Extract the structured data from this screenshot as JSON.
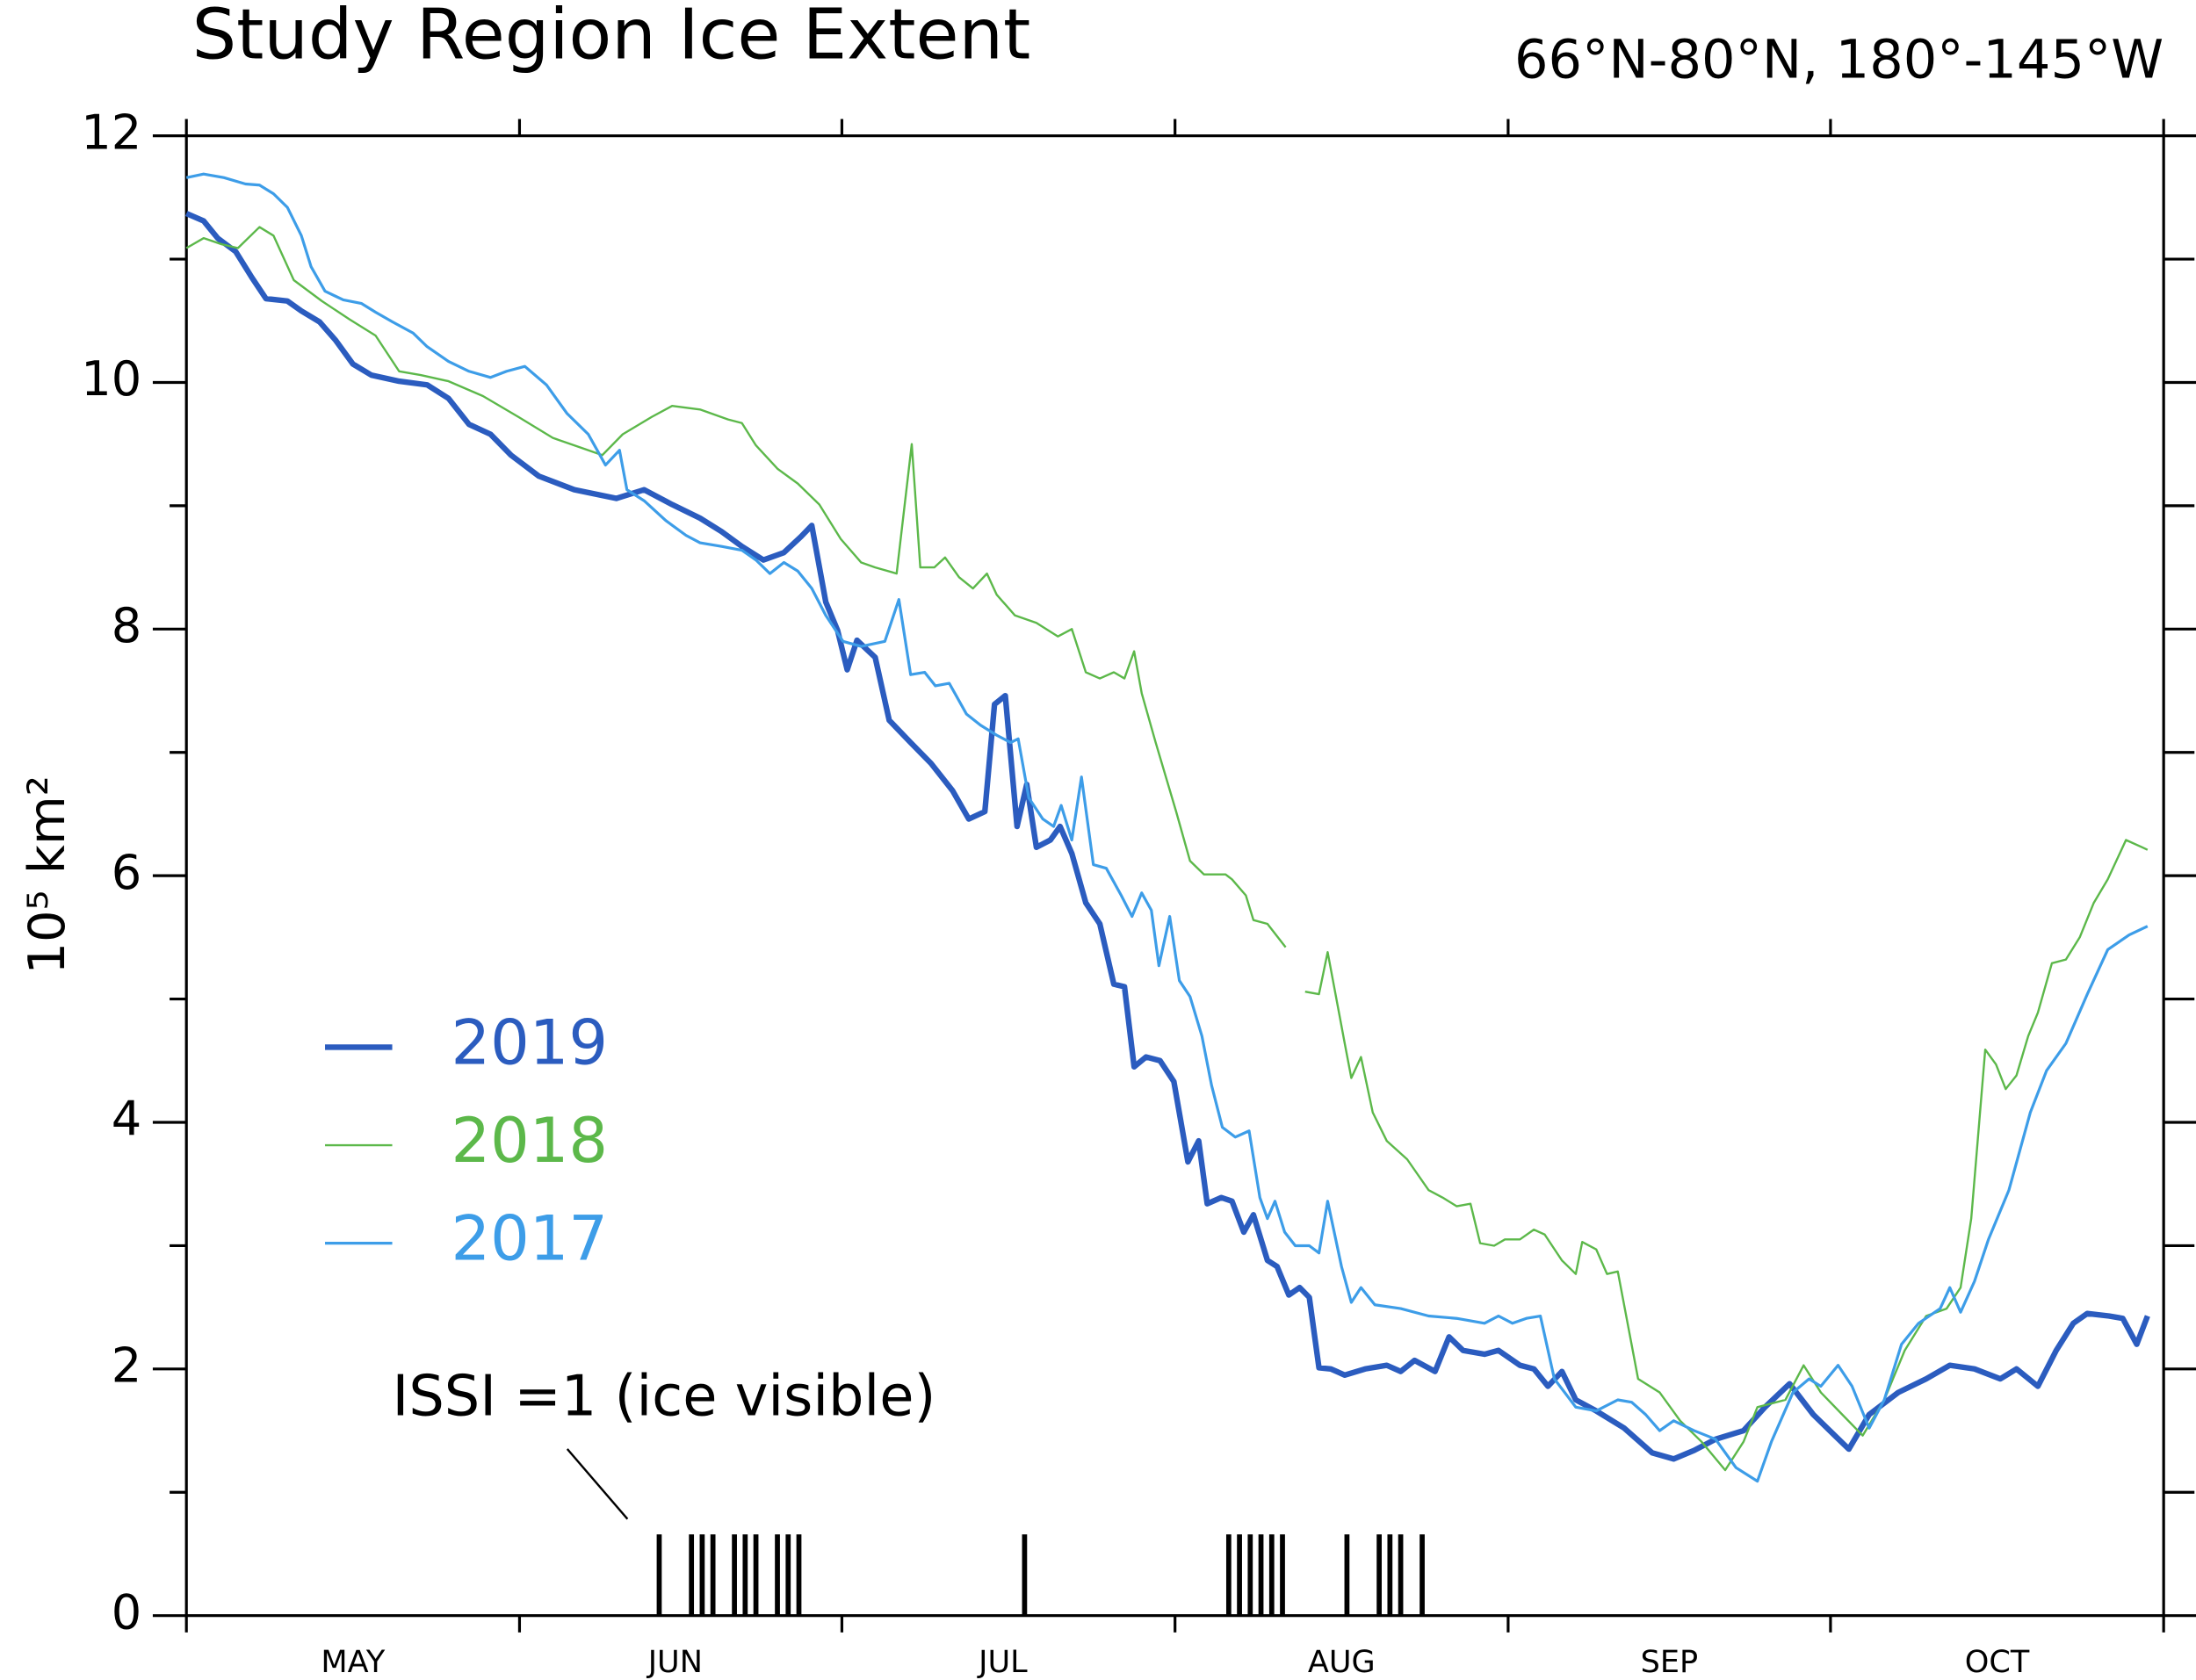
{
  "chart_data": {
    "type": "line",
    "title": "Study Region Ice Extent",
    "subtitle": "66°N-80°N, 180°-145°W",
    "ylabel": "10⁵  km²",
    "xlim": [
      0,
      184
    ],
    "ylim": [
      0,
      12
    ],
    "yticks": [
      0,
      2,
      4,
      6,
      8,
      10,
      12
    ],
    "yminor": [
      1,
      3,
      5,
      7,
      9,
      11
    ],
    "xticks": [
      {
        "value": 15.5,
        "label": "MAY"
      },
      {
        "value": 45.5,
        "label": "JUN"
      },
      {
        "value": 76,
        "label": "JUL"
      },
      {
        "value": 107.5,
        "label": "AUG"
      },
      {
        "value": 138,
        "label": "SEP"
      },
      {
        "value": 168.5,
        "label": "OCT"
      }
    ],
    "x_month_edges": [
      0,
      31,
      61,
      92,
      123,
      153,
      184
    ],
    "legend": "center-left",
    "series": [
      {
        "name": "2019",
        "color": "#2b5cbf",
        "width": 4,
        "x": [
          0,
          1.6,
          2.9,
          4.6,
          6.1,
          7.4,
          9.4,
          10.7,
          12.4,
          13.9,
          15.5,
          17.2,
          19.8,
          22.4,
          24.4,
          26.3,
          28.3,
          30.2,
          32.8,
          36.1,
          40.0,
          42.6,
          45.2,
          47.8,
          49.8,
          51.7,
          53.7,
          55.6,
          57.2,
          58.2,
          59.5,
          60.6,
          61.5,
          62.4,
          64.1,
          65.4,
          67.4,
          69.3,
          71.3,
          72.8,
          74.3,
          75.2,
          76.2,
          77.3,
          78.2,
          79.1,
          80.4,
          81.3,
          82.4,
          83.7,
          85.0,
          86.3,
          87.3,
          88.2,
          89.3,
          90.6,
          91.9,
          93.2,
          94.2,
          95.0,
          96.3,
          97.3,
          98.4,
          99.3,
          100.6,
          101.5,
          102.6,
          103.6,
          104.5,
          105.4,
          106.5,
          107.8,
          109.7,
          111.7,
          113.0,
          114.3,
          116.2,
          117.5,
          118.8,
          120.8,
          122.1,
          124.1,
          125.4,
          126.7,
          128.0,
          129.3,
          131.2,
          133.8,
          136.4,
          138.4,
          140.3,
          142.3,
          144.9,
          146.9,
          149.2,
          151.4,
          153.4,
          154.7,
          156.6,
          159.3,
          161.9,
          164.1,
          166.4,
          168.8,
          170.3,
          172.3,
          174.0,
          175.6,
          176.9,
          178.9,
          180.2,
          181.5,
          182.5
        ],
        "values": [
          11.37,
          11.31,
          11.17,
          11.06,
          10.85,
          10.68,
          10.66,
          10.58,
          10.49,
          10.34,
          10.15,
          10.06,
          10.01,
          9.98,
          9.87,
          9.66,
          9.58,
          9.41,
          9.24,
          9.13,
          9.06,
          9.13,
          9.01,
          8.9,
          8.79,
          8.67,
          8.56,
          8.62,
          8.75,
          8.84,
          8.22,
          7.99,
          7.67,
          7.91,
          7.77,
          7.26,
          7.08,
          6.91,
          6.69,
          6.46,
          6.52,
          7.39,
          7.46,
          6.4,
          6.74,
          6.23,
          6.29,
          6.4,
          6.18,
          5.78,
          5.61,
          5.12,
          5.1,
          4.45,
          4.53,
          4.5,
          4.33,
          3.68,
          3.85,
          3.34,
          3.39,
          3.36,
          3.11,
          3.25,
          2.88,
          2.83,
          2.6,
          2.66,
          2.58,
          2.01,
          2.0,
          1.95,
          2.0,
          2.03,
          1.98,
          2.07,
          1.98,
          2.26,
          2.15,
          2.12,
          2.15,
          2.03,
          2.0,
          1.86,
          1.98,
          1.75,
          1.66,
          1.52,
          1.32,
          1.27,
          1.34,
          1.43,
          1.5,
          1.69,
          1.88,
          1.63,
          1.46,
          1.35,
          1.63,
          1.81,
          1.92,
          2.03,
          2.0,
          1.92,
          2.0,
          1.86,
          2.15,
          2.37,
          2.45,
          2.43,
          2.41,
          2.2,
          2.43
        ]
      },
      {
        "name": "2018",
        "color": "#5cb84a",
        "width": 1.5,
        "x": [
          0,
          1.6,
          3.3,
          4.8,
          6.8,
          8.1,
          10.0,
          12.6,
          15.2,
          17.6,
          19.8,
          21.8,
          24.4,
          27.6,
          30.9,
          34.1,
          36.1,
          38.7,
          40.6,
          43.3,
          45.2,
          47.8,
          50.4,
          51.7,
          53.0,
          55.0,
          56.9,
          58.9,
          60.9,
          62.8,
          64.1,
          66.1,
          67.5,
          68.3,
          69.6,
          70.6,
          71.9,
          73.2,
          74.5,
          75.4,
          77.1,
          79.1,
          81.1,
          82.4,
          83.7,
          85.0,
          86.3,
          87.3,
          88.2,
          88.9,
          90.2,
          92.1,
          93.4,
          94.7,
          96.7,
          97.3,
          98.6,
          99.3,
          100.6,
          102.3,
          103.2,
          104.1,
          105.4,
          106.2,
          107.8,
          108.4,
          109.3,
          110.4,
          111.7,
          113.6,
          115.6,
          116.9,
          118.2,
          119.5,
          120.4,
          121.7,
          122.7,
          124.1,
          125.4,
          126.4,
          128.0,
          129.3,
          129.9,
          131.2,
          132.2,
          133.2,
          135.1,
          137.1,
          139.0,
          141.0,
          143.2,
          144.9,
          146.2,
          148.8,
          150.5,
          152.1,
          154.1,
          156.0,
          158.0,
          159.9,
          161.9,
          163.8,
          165.1,
          166.1,
          167.4,
          168.4,
          169.3,
          170.3,
          171.4,
          172.3,
          173.6,
          174.9,
          176.2,
          177.5,
          178.8,
          180.5,
          182.0,
          182.5
        ],
        "values": [
          11.09,
          11.17,
          11.12,
          11.09,
          11.26,
          11.19,
          10.83,
          10.66,
          10.51,
          10.38,
          10.09,
          10.06,
          10.01,
          9.89,
          9.72,
          9.55,
          9.49,
          9.41,
          9.58,
          9.72,
          9.81,
          9.78,
          9.7,
          9.67,
          9.49,
          9.3,
          9.18,
          9.01,
          8.73,
          8.54,
          8.5,
          8.45,
          9.5,
          8.5,
          8.5,
          8.58,
          8.42,
          8.33,
          8.45,
          8.28,
          8.11,
          8.05,
          7.94,
          8.0,
          7.65,
          7.6,
          7.65,
          7.6,
          7.82,
          7.48,
          7.08,
          6.52,
          6.12,
          6.01,
          6.01,
          5.97,
          5.84,
          5.64,
          5.61,
          5.42,
          null,
          5.06,
          5.04,
          5.38,
          4.64,
          4.36,
          4.53,
          4.08,
          3.85,
          3.7,
          3.45,
          3.39,
          3.32,
          3.34,
          3.02,
          3.0,
          3.05,
          3.05,
          3.13,
          3.09,
          2.88,
          2.77,
          3.03,
          2.97,
          2.77,
          2.79,
          1.92,
          1.81,
          1.58,
          1.41,
          1.18,
          1.41,
          1.69,
          1.75,
          2.03,
          1.81,
          1.63,
          1.46,
          1.75,
          2.15,
          2.43,
          2.49,
          2.66,
          3.22,
          4.59,
          4.47,
          4.27,
          4.38,
          4.7,
          4.89,
          5.29,
          5.32,
          5.5,
          5.78,
          5.97,
          6.29,
          6.23,
          6.21
        ]
      },
      {
        "name": "2017",
        "color": "#3d9de8",
        "width": 2,
        "x": [
          0,
          1.6,
          3.5,
          5.5,
          6.8,
          8.1,
          9.4,
          10.7,
          11.6,
          12.9,
          14.6,
          16.3,
          17.6,
          19.2,
          21.1,
          22.4,
          24.4,
          26.3,
          28.3,
          29.8,
          31.5,
          33.5,
          35.4,
          37.4,
          39.0,
          40.3,
          41.0,
          42.6,
          44.6,
          46.5,
          47.8,
          49.8,
          51.7,
          53.0,
          54.3,
          55.6,
          56.9,
          58.2,
          59.5,
          61.1,
          62.8,
          65.0,
          66.3,
          67.4,
          68.7,
          69.7,
          71.0,
          72.6,
          73.9,
          75.4,
          76.7,
          77.4,
          78.4,
          79.7,
          80.7,
          81.4,
          82.4,
          83.3,
          84.4,
          85.6,
          87.0,
          88.0,
          88.9,
          89.8,
          90.5,
          91.5,
          92.4,
          93.4,
          94.5,
          95.4,
          96.4,
          97.6,
          98.9,
          99.9,
          100.6,
          101.3,
          102.2,
          103.2,
          104.5,
          105.4,
          106.2,
          107.5,
          108.4,
          109.3,
          110.6,
          113.0,
          115.6,
          118.2,
          120.8,
          122.1,
          123.4,
          124.7,
          126.0,
          127.3,
          129.3,
          131.2,
          133.2,
          134.5,
          135.8,
          137.1,
          138.4,
          140.3,
          142.3,
          144.2,
          146.2,
          147.5,
          149.5,
          151.0,
          152.1,
          153.7,
          155.0,
          156.6,
          158.0,
          159.6,
          161.2,
          163.2,
          164.1,
          165.1,
          166.4,
          167.7,
          169.6,
          171.6,
          173.1,
          174.9,
          176.9,
          178.8,
          180.8,
          182.5
        ],
        "values": [
          11.66,
          11.69,
          11.66,
          11.61,
          11.6,
          11.53,
          11.42,
          11.19,
          10.94,
          10.74,
          10.67,
          10.64,
          10.57,
          10.49,
          10.4,
          10.29,
          10.17,
          10.09,
          10.04,
          10.09,
          10.13,
          9.98,
          9.75,
          9.58,
          9.33,
          9.45,
          9.13,
          9.04,
          8.88,
          8.76,
          8.7,
          8.67,
          8.64,
          8.56,
          8.45,
          8.54,
          8.47,
          8.33,
          8.11,
          7.9,
          7.86,
          7.9,
          8.24,
          7.63,
          7.65,
          7.54,
          7.56,
          7.31,
          7.22,
          7.14,
          7.08,
          7.11,
          6.63,
          6.46,
          6.4,
          6.57,
          6.29,
          6.8,
          6.09,
          6.06,
          5.84,
          5.67,
          5.86,
          5.72,
          5.27,
          5.67,
          5.15,
          5.02,
          4.7,
          4.3,
          3.96,
          3.88,
          3.93,
          3.39,
          3.22,
          3.36,
          3.11,
          3.0,
          3.0,
          2.94,
          3.36,
          2.83,
          2.54,
          2.66,
          2.52,
          2.49,
          2.43,
          2.41,
          2.37,
          2.43,
          2.37,
          2.41,
          2.43,
          1.92,
          1.69,
          1.66,
          1.75,
          1.73,
          1.63,
          1.5,
          1.58,
          1.5,
          1.43,
          1.2,
          1.09,
          1.41,
          1.81,
          1.92,
          1.86,
          2.03,
          1.86,
          1.52,
          1.75,
          2.2,
          2.37,
          2.49,
          2.66,
          2.46,
          2.71,
          3.05,
          3.45,
          4.08,
          4.42,
          4.64,
          5.04,
          5.4,
          5.52,
          5.59
        ]
      }
    ],
    "issi": {
      "label": "ISSI =1 (ice visible)",
      "color": "#000000",
      "days": [
        44,
        47,
        48,
        49,
        51,
        52,
        53,
        55,
        56,
        57,
        78,
        97,
        98,
        99,
        100,
        101,
        102,
        108,
        111,
        112,
        113,
        115
      ]
    }
  }
}
